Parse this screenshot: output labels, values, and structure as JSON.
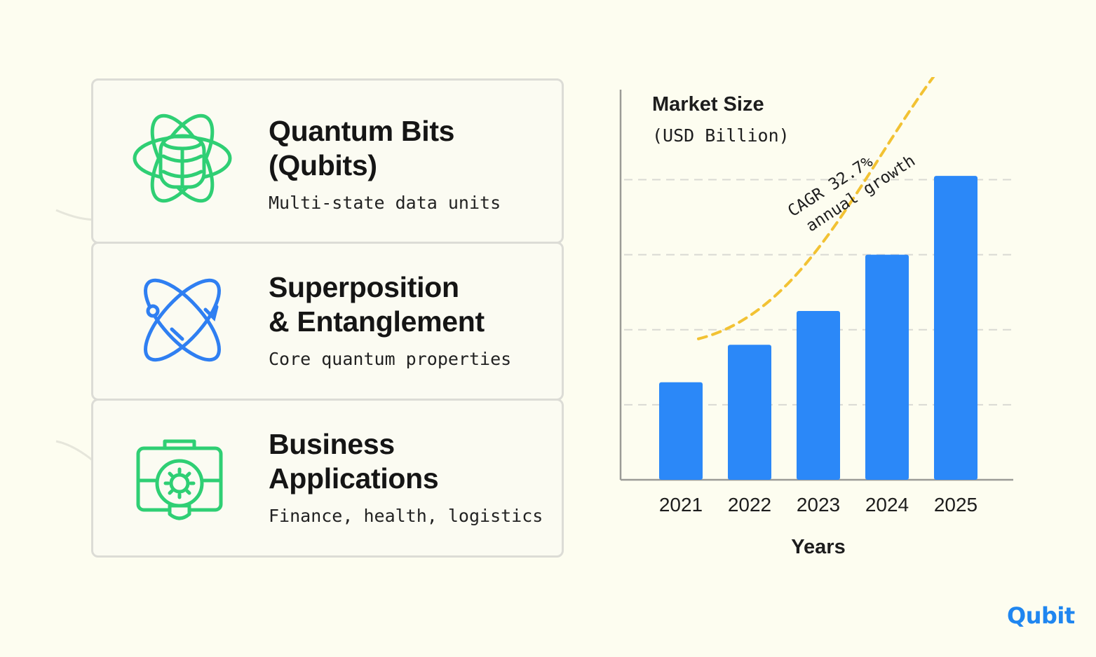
{
  "cards": [
    {
      "title": "Quantum Bits\n(Qubits)",
      "subtitle": "Multi-state data units",
      "icon": "atom-database-icon"
    },
    {
      "title": "Superposition\n& Entanglement",
      "subtitle": "Core quantum properties",
      "icon": "entangled-orbits-icon"
    },
    {
      "title": "Business\nApplications",
      "subtitle": "Finance, health, logistics",
      "icon": "briefcase-lightbulb-icon"
    }
  ],
  "chart_data": {
    "type": "bar",
    "title": "Market Size",
    "subtitle": "(USD Billion)",
    "xlabel": "Years",
    "ylabel": "",
    "categories": [
      "2021",
      "2022",
      "2023",
      "2024",
      "2025"
    ],
    "values": [
      1.3,
      1.8,
      2.25,
      3.0,
      4.05
    ],
    "ylim": [
      0,
      5.2
    ],
    "grid": true,
    "annotation": {
      "line1": "CAGR 32.7%",
      "line2": "annual growth"
    }
  },
  "colors": {
    "bar": "#2b88f8",
    "trend": "#f2c233",
    "green_icon": "#2fcf74",
    "blue_icon": "#2f7ff2",
    "background": "#fdfdf0",
    "logo": "#1f86f0",
    "logo_dot": "#f2c233"
  },
  "logo": {
    "text": "Qubit"
  }
}
